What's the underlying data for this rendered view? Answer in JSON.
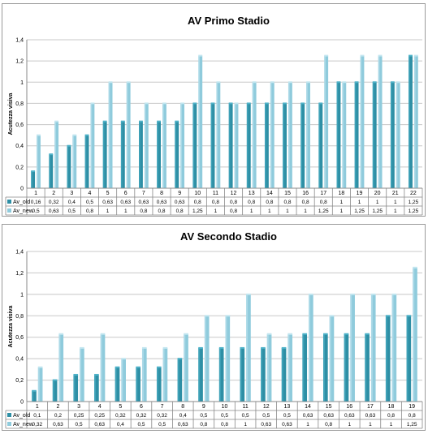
{
  "chart_data": [
    {
      "type": "bar",
      "title": "AV Primo Stadio",
      "ylabel": "Acutezza visiva",
      "xlabel": "",
      "ylim": [
        0,
        1.4
      ],
      "yticks": [
        "0",
        "0,2",
        "0,4",
        "0,6",
        "0,8",
        "1",
        "1,2",
        "1,4"
      ],
      "grid": true,
      "legend": "table-below",
      "categories": [
        "1",
        "2",
        "3",
        "4",
        "5",
        "6",
        "7",
        "8",
        "9",
        "10",
        "11",
        "12",
        "13",
        "14",
        "15",
        "16",
        "17",
        "18",
        "19",
        "20",
        "21",
        "22"
      ],
      "series": [
        {
          "name": "Av_old",
          "color": "#2e8fa5",
          "values": [
            0.16,
            0.32,
            0.4,
            0.5,
            0.63,
            0.63,
            0.63,
            0.63,
            0.63,
            0.8,
            0.8,
            0.8,
            0.8,
            0.8,
            0.8,
            0.8,
            0.8,
            1,
            1,
            1,
            1,
            1.25
          ],
          "labels": [
            "0,16",
            "0,32",
            "0,4",
            "0,5",
            "0,63",
            "0,63",
            "0,63",
            "0,63",
            "0,63",
            "0,8",
            "0,8",
            "0,8",
            "0,8",
            "0,8",
            "0,8",
            "0,8",
            "0,8",
            "1",
            "1",
            "1",
            "1",
            "1,25"
          ]
        },
        {
          "name": "Av_new",
          "color": "#8fcbdc",
          "values": [
            0.5,
            0.63,
            0.5,
            0.8,
            1,
            1,
            0.8,
            0.8,
            0.8,
            1.25,
            1,
            0.8,
            1,
            1,
            1,
            1,
            1.25,
            1,
            1.25,
            1.25,
            1,
            1.25
          ],
          "labels": [
            "0,5",
            "0,63",
            "0,5",
            "0,8",
            "1",
            "1",
            "0,8",
            "0,8",
            "0,8",
            "1,25",
            "1",
            "0,8",
            "1",
            "1",
            "1",
            "1",
            "1,25",
            "1",
            "1,25",
            "1,25",
            "1",
            "1,25"
          ]
        }
      ]
    },
    {
      "type": "bar",
      "title": "AV Secondo Stadio",
      "ylabel": "Acutezza visiva",
      "xlabel": "",
      "ylim": [
        0,
        1.4
      ],
      "yticks": [
        "0",
        "0,2",
        "0,4",
        "0,6",
        "0,8",
        "1",
        "1,2",
        "1,4"
      ],
      "grid": true,
      "legend": "table-below",
      "categories": [
        "1",
        "2",
        "3",
        "4",
        "5",
        "6",
        "7",
        "8",
        "9",
        "10",
        "11",
        "12",
        "13",
        "14",
        "15",
        "16",
        "17",
        "18",
        "19"
      ],
      "series": [
        {
          "name": "Av_old",
          "color": "#2e8fa5",
          "values": [
            0.1,
            0.2,
            0.25,
            0.25,
            0.32,
            0.32,
            0.32,
            0.4,
            0.5,
            0.5,
            0.5,
            0.5,
            0.5,
            0.63,
            0.63,
            0.63,
            0.63,
            0.8,
            0.8
          ],
          "labels": [
            "0,1",
            "0,2",
            "0,25",
            "0,25",
            "0,32",
            "0,32",
            "0,32",
            "0,4",
            "0,5",
            "0,5",
            "0,5",
            "0,5",
            "0,5",
            "0,63",
            "0,63",
            "0,63",
            "0,63",
            "0,8",
            "0,8"
          ]
        },
        {
          "name": "Av_new",
          "color": "#8fcbdc",
          "values": [
            0.32,
            0.63,
            0.5,
            0.63,
            0.4,
            0.5,
            0.5,
            0.63,
            0.8,
            0.8,
            1,
            0.63,
            0.63,
            1,
            0.8,
            1,
            1,
            1,
            1.25
          ],
          "labels": [
            "0,32",
            "0,63",
            "0,5",
            "0,63",
            "0,4",
            "0,5",
            "0,5",
            "0,63",
            "0,8",
            "0,8",
            "1",
            "0,63",
            "0,63",
            "1",
            "0,8",
            "1",
            "1",
            "1",
            "1,25"
          ]
        }
      ]
    }
  ]
}
